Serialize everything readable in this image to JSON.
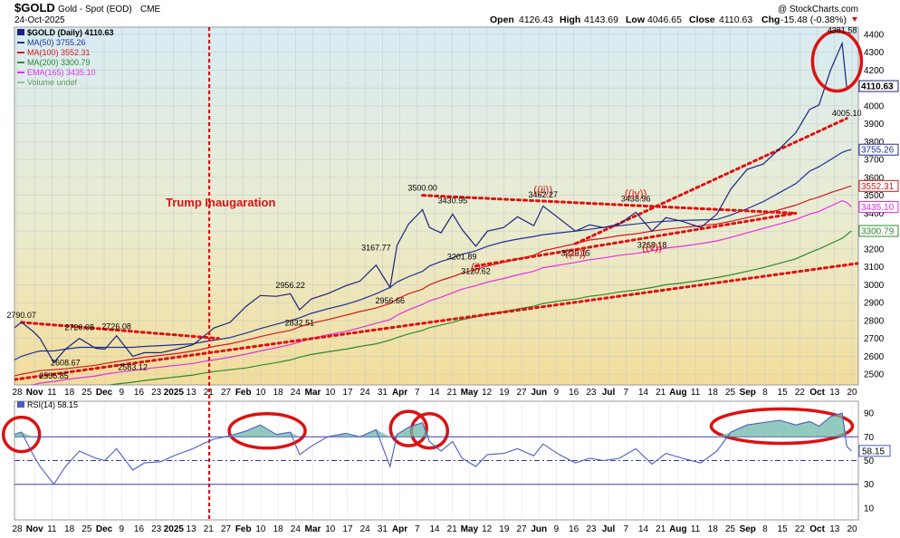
{
  "header": {
    "title": "$GOLD",
    "subtitle": "Gold - Spot (EOD)",
    "exchange": "CME",
    "date": "24-Oct-2025",
    "watermark": "@ StockCharts.com",
    "ohlc": {
      "open_label": "Open",
      "open": "4126.43",
      "high_label": "High",
      "high": "4143.69",
      "low_label": "Low",
      "low": "4046.65",
      "close_label": "Close",
      "close": "4110.63",
      "chg_label": "Chg",
      "chg": "-15.48 (-0.38%)"
    }
  },
  "legend": {
    "price": "$GOLD (Daily) 4110.63",
    "ma50": "MA(50) 3755.26",
    "ma100": "MA(100) 3552.31",
    "ma200": "MA(200) 3300.79",
    "ema165": "EMA(165) 3435.10",
    "volume": "Volume undef"
  },
  "colors": {
    "price": "#1a237e",
    "ma50": "#1f2f9a",
    "ma100": "#d41a1a",
    "ma200": "#2d8a2d",
    "ema165": "#e52ee5",
    "annotation": "#dd1111",
    "rsi": "#4a5cc8",
    "rsi_fill": "#6fb8a8"
  },
  "chart_data": [
    {
      "type": "line",
      "title": "$GOLD (Daily)",
      "x": [
        "2024-10-28",
        "2024-10-31",
        "2024-11-05",
        "2024-11-08",
        "2024-11-14",
        "2024-11-19",
        "2024-11-25",
        "2024-12-02",
        "2024-12-06",
        "2024-12-11",
        "2024-12-18",
        "2024-12-23",
        "2024-12-30",
        "2025-01-06",
        "2025-01-13",
        "2025-01-17",
        "2025-01-22",
        "2025-01-29",
        "2025-02-05",
        "2025-02-11",
        "2025-02-18",
        "2025-02-24",
        "2025-02-28",
        "2025-03-05",
        "2025-03-12",
        "2025-03-20",
        "2025-03-26",
        "2025-04-02",
        "2025-04-08",
        "2025-04-11",
        "2025-04-16",
        "2025-04-22",
        "2025-04-25",
        "2025-04-30",
        "2025-05-05",
        "2025-05-09",
        "2025-05-15",
        "2025-05-20",
        "2025-05-27",
        "2025-06-02",
        "2025-06-09",
        "2025-06-13",
        "2025-06-20",
        "2025-06-27",
        "2025-07-03",
        "2025-07-09",
        "2025-07-16",
        "2025-07-23",
        "2025-07-30",
        "2025-08-05",
        "2025-08-12",
        "2025-08-20",
        "2025-08-27",
        "2025-09-02",
        "2025-09-09",
        "2025-09-16",
        "2025-09-23",
        "2025-09-30",
        "2025-10-06",
        "2025-10-10",
        "2025-10-15",
        "2025-10-20",
        "2025-10-22",
        "2025-10-24"
      ],
      "close": [
        2760,
        2790,
        2740,
        2700,
        2565,
        2640,
        2700,
        2645,
        2640,
        2715,
        2600,
        2620,
        2620,
        2640,
        2665,
        2705,
        2758,
        2790,
        2880,
        2940,
        2935,
        2950,
        2860,
        2920,
        2950,
        2995,
        3020,
        3110,
        2985,
        3220,
        3340,
        3420,
        3320,
        3290,
        3395,
        3310,
        3215,
        3300,
        3320,
        3380,
        3330,
        3440,
        3370,
        3300,
        3335,
        3320,
        3340,
        3405,
        3300,
        3375,
        3355,
        3320,
        3395,
        3535,
        3645,
        3675,
        3760,
        3850,
        3980,
        4005,
        4200,
        4350,
        4100,
        4110.63
      ],
      "ma50": [
        2580,
        2600,
        2620,
        2630,
        2630,
        2640,
        2650,
        2650,
        2650,
        2650,
        2650,
        2655,
        2660,
        2665,
        2670,
        2680,
        2690,
        2705,
        2730,
        2755,
        2780,
        2800,
        2815,
        2840,
        2865,
        2890,
        2915,
        2950,
        2985,
        3015,
        3045,
        3075,
        3105,
        3130,
        3150,
        3170,
        3190,
        3215,
        3240,
        3255,
        3270,
        3280,
        3290,
        3300,
        3310,
        3320,
        3330,
        3340,
        3350,
        3355,
        3360,
        3362,
        3365,
        3390,
        3425,
        3465,
        3515,
        3565,
        3635,
        3660,
        3700,
        3740,
        3750,
        3755.26
      ],
      "ma100": [
        2490,
        2500,
        2512,
        2520,
        2525,
        2530,
        2540,
        2550,
        2560,
        2570,
        2585,
        2595,
        2605,
        2615,
        2630,
        2640,
        2655,
        2670,
        2690,
        2710,
        2730,
        2745,
        2765,
        2785,
        2805,
        2830,
        2850,
        2870,
        2895,
        2920,
        2950,
        2975,
        3000,
        3025,
        3045,
        3065,
        3085,
        3105,
        3125,
        3145,
        3165,
        3190,
        3210,
        3230,
        3250,
        3260,
        3275,
        3285,
        3300,
        3310,
        3320,
        3330,
        3340,
        3355,
        3375,
        3395,
        3420,
        3445,
        3475,
        3490,
        3515,
        3535,
        3545,
        3552.31
      ],
      "ma200": [
        2355,
        2365,
        2375,
        2385,
        2395,
        2405,
        2415,
        2425,
        2435,
        2445,
        2455,
        2465,
        2475,
        2485,
        2495,
        2505,
        2515,
        2525,
        2535,
        2550,
        2565,
        2580,
        2595,
        2610,
        2625,
        2640,
        2655,
        2670,
        2690,
        2705,
        2725,
        2745,
        2760,
        2775,
        2790,
        2805,
        2820,
        2835,
        2850,
        2865,
        2880,
        2895,
        2910,
        2920,
        2935,
        2945,
        2960,
        2970,
        2985,
        3000,
        3010,
        3025,
        3040,
        3055,
        3075,
        3095,
        3120,
        3145,
        3180,
        3200,
        3230,
        3260,
        3280,
        3300.79
      ],
      "ema165": [
        2420,
        2430,
        2440,
        2450,
        2460,
        2470,
        2480,
        2490,
        2500,
        2510,
        2520,
        2530,
        2540,
        2550,
        2560,
        2570,
        2580,
        2595,
        2612,
        2630,
        2648,
        2665,
        2680,
        2700,
        2720,
        2740,
        2760,
        2785,
        2805,
        2830,
        2860,
        2890,
        2910,
        2930,
        2955,
        2975,
        2995,
        3015,
        3035,
        3055,
        3075,
        3095,
        3110,
        3125,
        3140,
        3150,
        3165,
        3175,
        3190,
        3205,
        3215,
        3230,
        3245,
        3265,
        3290,
        3315,
        3340,
        3365,
        3395,
        3410,
        3440,
        3470,
        3460,
        3435.1
      ],
      "ylim": [
        2440,
        4440
      ],
      "yticks": [
        "4400",
        "4300",
        "4200",
        "4100",
        "4000",
        "3900",
        "3800",
        "3700",
        "3600",
        "3500",
        "3400",
        "3300",
        "3200",
        "3100",
        "3000",
        "2900",
        "2800",
        "2700",
        "2600",
        "2500"
      ],
      "xticks": [
        "28",
        "Nov",
        "11",
        "18",
        "25",
        "Dec",
        "9",
        "16",
        "23",
        "2025",
        "13",
        "21",
        "27",
        "Feb",
        "10",
        "18",
        "24",
        "Mar",
        "10",
        "17",
        "24",
        "31",
        "Apr",
        "7",
        "14",
        "21",
        "May",
        "12",
        "19",
        "27",
        "Jun",
        "9",
        "16",
        "23",
        "Jul",
        "7",
        "14",
        "21",
        "Aug",
        "11",
        "18",
        "25",
        "Sep",
        "8",
        "15",
        "22",
        "Oct",
        "13",
        "20"
      ],
      "axis_badges": [
        {
          "label": "4110.63",
          "value": 4110.63,
          "series": "price"
        },
        {
          "label": "3755.26",
          "value": 3755.26,
          "series": "ma50"
        },
        {
          "label": "3552.31",
          "value": 3552.31,
          "series": "ma100"
        },
        {
          "label": "3435.10",
          "value": 3435.1,
          "series": "ema165"
        },
        {
          "label": "3300.79",
          "value": 3300.79,
          "series": "ma200"
        }
      ],
      "point_labels": [
        {
          "text": "2790.07",
          "date": "2024-10-31",
          "value": 2790.07
        },
        {
          "text": "2720.08",
          "date": "2024-11-25",
          "value": 2720.08
        },
        {
          "text": "2726.08",
          "date": "2024-12-11",
          "value": 2726.08
        },
        {
          "text": "2608.67",
          "date": "2024-11-19",
          "value": 2608.67
        },
        {
          "text": "2536.85",
          "date": "2024-11-14",
          "value": 2536.85
        },
        {
          "text": "2583.12",
          "date": "2024-12-18",
          "value": 2583.12
        },
        {
          "text": "2956.22",
          "date": "2025-02-24",
          "value": 2956.22
        },
        {
          "text": "2832.51",
          "date": "2025-02-28",
          "value": 2832.51
        },
        {
          "text": "3167.77",
          "date": "2025-04-02",
          "value": 3167.77
        },
        {
          "text": "2956.66",
          "date": "2025-04-08",
          "value": 2956.66
        },
        {
          "text": "3500.00",
          "date": "2025-04-22",
          "value": 3500.0
        },
        {
          "text": "3430.95",
          "date": "2025-05-05",
          "value": 3430.95
        },
        {
          "text": "3201.89",
          "date": "2025-05-09",
          "value": 3201.89
        },
        {
          "text": "3120.62",
          "date": "2025-05-15",
          "value": 3120.62
        },
        {
          "text": "3462.27",
          "date": "2025-06-13",
          "value": 3462.27
        },
        {
          "text": "3223.15",
          "date": "2025-06-27",
          "value": 3223.15
        },
        {
          "text": "3438.96",
          "date": "2025-07-23",
          "value": 3438.96
        },
        {
          "text": "3268.18",
          "date": "2025-07-30",
          "value": 3268.18
        },
        {
          "text": "4381.58",
          "date": "2025-10-20",
          "value": 4381.58
        },
        {
          "text": "4005.10",
          "date": "2025-10-22",
          "value": 4005.1
        }
      ],
      "wave_labels": [
        {
          "text": "(i)",
          "date": "2025-05-15",
          "value": 3080
        },
        {
          "text": "((ii))",
          "date": "2025-06-13",
          "value": 3510
        },
        {
          "text": "((iii))",
          "date": "2025-06-27",
          "value": 3160
        },
        {
          "text": "((iv))",
          "date": "2025-07-23",
          "value": 3490
        },
        {
          "text": "((v))",
          "date": "2025-07-30",
          "value": 3190
        }
      ],
      "event": {
        "text": "Trump Inaugaration",
        "date": "2025-01-20"
      },
      "trendlines": [
        {
          "from": [
            "2024-10-31",
            2790
          ],
          "to": [
            "2025-01-24",
            2700
          ]
        },
        {
          "from": [
            "2024-10-28",
            2470
          ],
          "to": [
            "2025-10-27",
            3120
          ]
        },
        {
          "from": [
            "2025-05-15",
            3105
          ],
          "to": [
            "2025-09-30",
            3400
          ]
        },
        {
          "from": [
            "2025-04-22",
            3500
          ],
          "to": [
            "2025-09-30",
            3400
          ]
        },
        {
          "from": [
            "2025-06-27",
            3230
          ],
          "to": [
            "2025-10-22",
            3930
          ]
        }
      ],
      "circles": [
        {
          "date": "2025-10-17",
          "value": 4250
        }
      ]
    },
    {
      "type": "line",
      "title": "RSI(14) 58.15",
      "x": [
        "2024-10-28",
        "2024-10-31",
        "2024-11-05",
        "2024-11-08",
        "2024-11-14",
        "2024-11-19",
        "2024-11-25",
        "2024-12-02",
        "2024-12-06",
        "2024-12-11",
        "2024-12-18",
        "2024-12-23",
        "2024-12-30",
        "2025-01-06",
        "2025-01-13",
        "2025-01-17",
        "2025-01-22",
        "2025-01-29",
        "2025-02-05",
        "2025-02-11",
        "2025-02-18",
        "2025-02-24",
        "2025-02-28",
        "2025-03-05",
        "2025-03-12",
        "2025-03-20",
        "2025-03-26",
        "2025-04-02",
        "2025-04-08",
        "2025-04-11",
        "2025-04-16",
        "2025-04-22",
        "2025-04-25",
        "2025-04-30",
        "2025-05-05",
        "2025-05-09",
        "2025-05-15",
        "2025-05-20",
        "2025-05-27",
        "2025-06-02",
        "2025-06-09",
        "2025-06-13",
        "2025-06-20",
        "2025-06-27",
        "2025-07-03",
        "2025-07-09",
        "2025-07-16",
        "2025-07-23",
        "2025-07-30",
        "2025-08-05",
        "2025-08-12",
        "2025-08-20",
        "2025-08-27",
        "2025-09-02",
        "2025-09-09",
        "2025-09-16",
        "2025-09-23",
        "2025-09-30",
        "2025-10-06",
        "2025-10-10",
        "2025-10-15",
        "2025-10-20",
        "2025-10-22",
        "2025-10-24"
      ],
      "values": [
        72,
        74,
        55,
        45,
        30,
        45,
        58,
        52,
        50,
        60,
        42,
        48,
        49,
        55,
        60,
        64,
        68,
        71,
        75,
        80,
        72,
        74,
        55,
        62,
        70,
        73,
        70,
        76,
        45,
        72,
        78,
        82,
        66,
        58,
        66,
        52,
        45,
        55,
        56,
        60,
        54,
        64,
        55,
        48,
        52,
        50,
        52,
        60,
        47,
        56,
        52,
        48,
        58,
        74,
        80,
        82,
        84,
        80,
        83,
        79,
        87,
        90,
        62,
        58.15
      ],
      "ylim": [
        0,
        100
      ],
      "yticks": [
        "90",
        "70",
        "50",
        "30",
        "10"
      ],
      "badge": "58.15",
      "overbought": 70,
      "midline": 50,
      "oversold": 30,
      "circles": [
        {
          "date": "2024-10-31",
          "value": 72
        },
        {
          "date": "2025-02-14",
          "value": 75
        },
        {
          "date": "2025-04-16",
          "value": 77
        },
        {
          "date": "2025-04-25",
          "value": 75
        },
        {
          "date": "2025-09-24",
          "value": 79
        }
      ]
    }
  ]
}
